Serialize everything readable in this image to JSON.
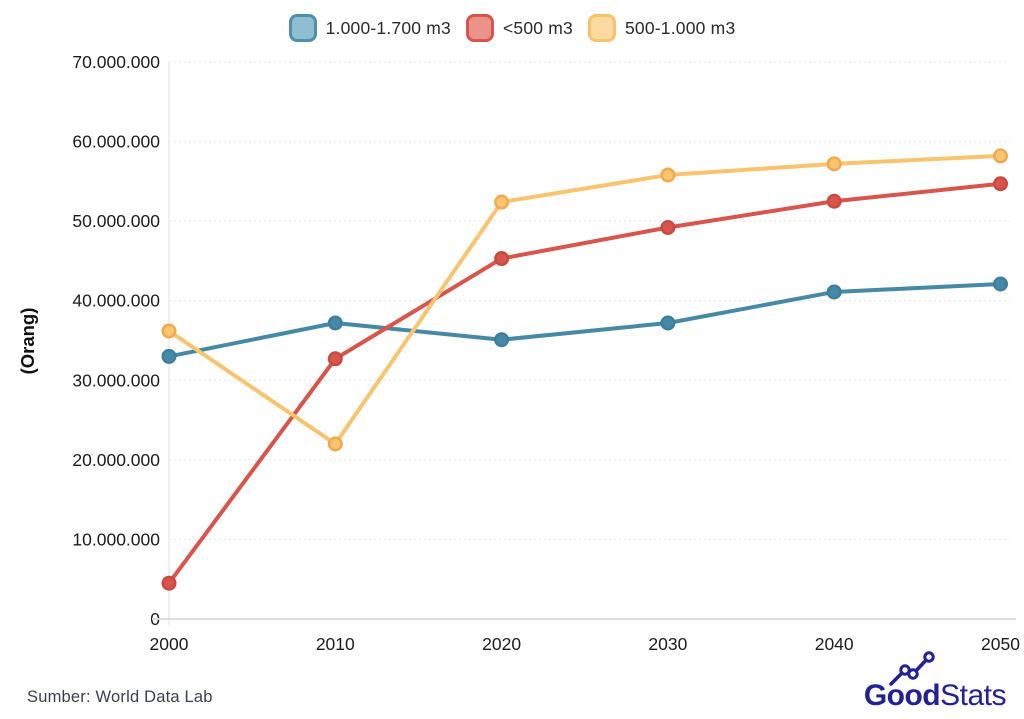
{
  "chart_data": {
    "type": "line",
    "title": "",
    "xlabel": "",
    "ylabel": "(Orang)",
    "x": [
      2000,
      2010,
      2020,
      2030,
      2040,
      2050
    ],
    "x_tick_labels": [
      "2000",
      "2010",
      "2020",
      "2030",
      "2040",
      "2050"
    ],
    "y_ticks": [
      {
        "value": 0,
        "label": "0"
      },
      {
        "value": 10000000,
        "label": "10.000.000"
      },
      {
        "value": 20000000,
        "label": "20.000.000"
      },
      {
        "value": 30000000,
        "label": "30.000.000"
      },
      {
        "value": 40000000,
        "label": "40.000.000"
      },
      {
        "value": 50000000,
        "label": "50.000.000"
      },
      {
        "value": 60000000,
        "label": "60.000.000"
      },
      {
        "value": 70000000,
        "label": "70.000.000"
      }
    ],
    "ylim": [
      0,
      70000000
    ],
    "grid": "horizontal-dashed",
    "legend_position": "top-center",
    "series": [
      {
        "name": "1.000-1.700 m3",
        "color": "#4589A7",
        "marker_stroke": "#3C7E9B",
        "swatch_border": "#4E8FAC",
        "swatch_fill": "#8FBDD1",
        "values": [
          33000000,
          37200000,
          35100000,
          37200000,
          41100000,
          42100000
        ]
      },
      {
        "name": "<500 m3",
        "color": "#D9544A",
        "marker_stroke": "#C64A40",
        "swatch_border": "#D95449",
        "swatch_fill": "#E9938B",
        "values": [
          4500000,
          32700000,
          45300000,
          49200000,
          52500000,
          54700000
        ]
      },
      {
        "name": "500-1.000 m3",
        "color": "#F9C46D",
        "marker_stroke": "#F0A94E",
        "swatch_border": "#F8C268",
        "swatch_fill": "#FBD9A0",
        "values": [
          36200000,
          22000000,
          52400000,
          55800000,
          57200000,
          58200000
        ]
      }
    ]
  },
  "footer": {
    "source_text": "Sumber: World Data Lab"
  },
  "logo": {
    "brand_bold": "Good",
    "brand_light": "Stats",
    "color": "#232196"
  },
  "style": {
    "grid_color": "#e9e9e9",
    "axis_color": "#dcdcdc",
    "tick_label_color": "#1c1c1c",
    "ylabel_color": "#111111"
  }
}
